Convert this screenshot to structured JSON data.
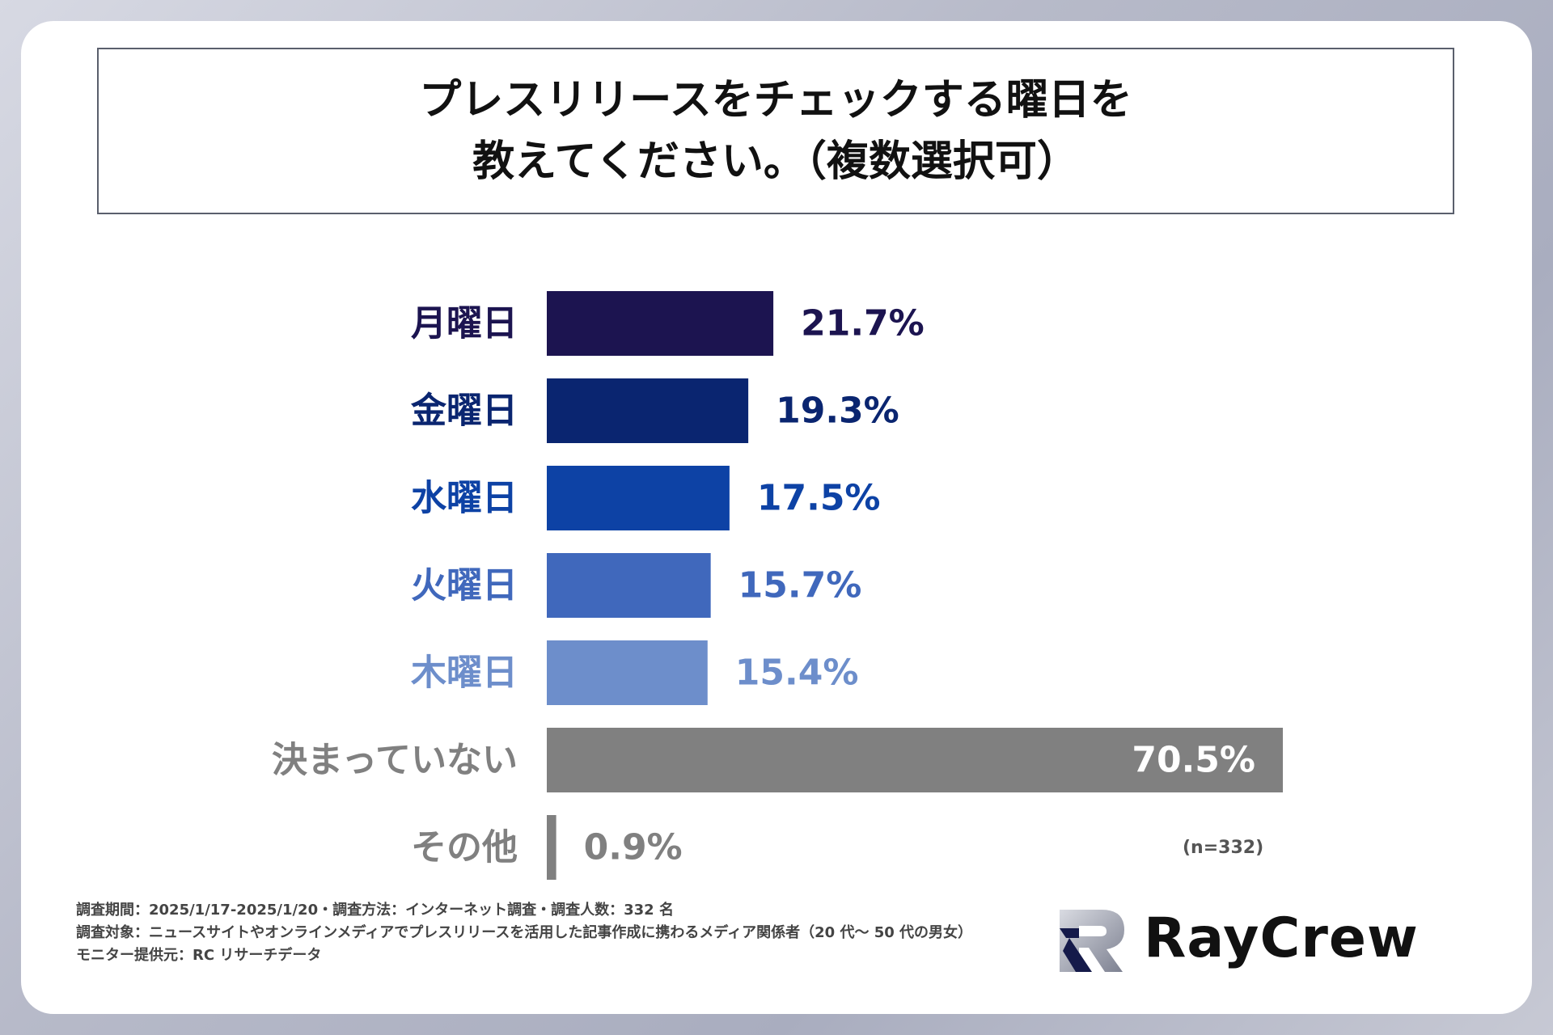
{
  "title": {
    "line1": "プレスリリースをチェックする曜日を",
    "line2": "教えてください。（複数選択可）"
  },
  "chart_data": {
    "type": "bar",
    "orientation": "horizontal",
    "categories": [
      "月曜日",
      "金曜日",
      "水曜日",
      "火曜日",
      "木曜日",
      "決まっていない",
      "その他"
    ],
    "values": [
      21.7,
      19.3,
      17.5,
      15.7,
      15.4,
      70.5,
      0.9
    ],
    "value_labels": [
      "21.7%",
      "19.3%",
      "17.5%",
      "15.7%",
      "15.4%",
      "70.5%",
      "0.9%"
    ],
    "colors": [
      "#1c1450",
      "#0a2570",
      "#0d42a5",
      "#4068bc",
      "#6d8ecb",
      "#808080",
      "#808080"
    ],
    "label_colors": [
      "#1c1450",
      "#0a2570",
      "#0d42a5",
      "#4068bc",
      "#6d8ecb",
      "#808080",
      "#808080"
    ],
    "unit": "%",
    "xlim": [
      0,
      70.5
    ]
  },
  "sample_note": "(n=332)",
  "footnote": {
    "line1": "調査期間：2025/1/17-2025/1/20・調査方法：インターネット調査・調査人数：332 名",
    "line2": "調査対象：ニュースサイトやオンラインメディアでプレスリリースを活用した記事作成に携わるメディア関係者（20 代～ 50 代の男女）",
    "line3": "モニター提供元：RC リサーチデータ"
  },
  "logo": {
    "text": "RayCrew",
    "icon": "raycrew-logo-icon"
  }
}
